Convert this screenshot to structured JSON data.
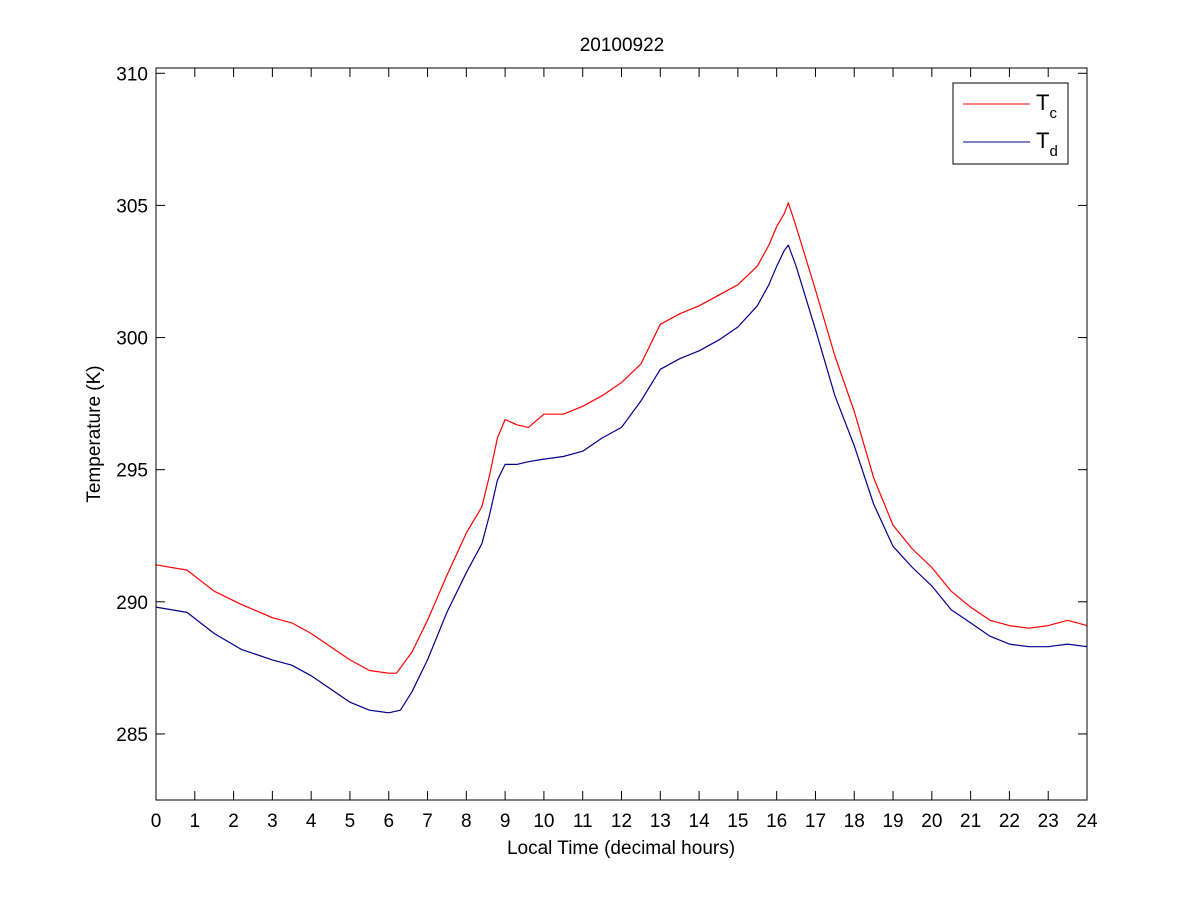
{
  "chart_data": {
    "type": "line",
    "title": "20100922",
    "xlabel": "Local Time (decimal hours)",
    "ylabel": "Temperature (K)",
    "xlim": [
      0,
      24
    ],
    "ylim": [
      282.5,
      310.2
    ],
    "xticks": [
      0,
      1,
      2,
      3,
      4,
      5,
      6,
      7,
      8,
      9,
      10,
      11,
      12,
      13,
      14,
      15,
      16,
      17,
      18,
      19,
      20,
      21,
      22,
      23,
      24
    ],
    "yticks": [
      285,
      290,
      295,
      300,
      305,
      310
    ],
    "grid": false,
    "legend_position": "top-right",
    "series": [
      {
        "name": "T",
        "name_subscript": "c",
        "color": "#ff0000",
        "x": [
          0,
          0.8,
          1.5,
          2.2,
          3,
          3.5,
          4,
          4.5,
          5,
          5.5,
          6,
          6.2,
          6.6,
          7,
          7.5,
          8,
          8.4,
          8.6,
          8.8,
          9,
          9.3,
          9.6,
          10,
          10.5,
          11,
          11.5,
          12,
          12.5,
          13,
          13.5,
          14,
          14.5,
          15,
          15.5,
          15.8,
          16,
          16.2,
          16.3,
          16.5,
          17,
          17.5,
          18,
          18.5,
          19,
          19.5,
          20,
          20.5,
          21,
          21.5,
          22,
          22.5,
          23,
          23.5,
          24
        ],
        "values": [
          291.4,
          291.2,
          290.4,
          289.9,
          289.4,
          289.2,
          288.8,
          288.3,
          287.8,
          287.4,
          287.3,
          287.3,
          288.1,
          289.3,
          291.0,
          292.6,
          293.6,
          294.8,
          296.2,
          296.9,
          296.7,
          296.6,
          297.1,
          297.1,
          297.4,
          297.8,
          298.3,
          299.0,
          300.5,
          300.9,
          301.2,
          301.6,
          302.0,
          302.7,
          303.5,
          304.2,
          304.7,
          305.1,
          304.2,
          301.8,
          299.3,
          297.2,
          294.7,
          292.9,
          292.0,
          291.3,
          290.4,
          289.8,
          289.3,
          289.1,
          289.0,
          289.1,
          289.3,
          289.1
        ]
      },
      {
        "name": "T",
        "name_subscript": "d",
        "color": "#00008b",
        "x": [
          0,
          0.8,
          1.5,
          2.2,
          3,
          3.5,
          4,
          4.5,
          5,
          5.5,
          6,
          6.3,
          6.6,
          7,
          7.5,
          8,
          8.4,
          8.6,
          8.8,
          9,
          9.3,
          9.6,
          10,
          10.5,
          11,
          11.5,
          12,
          12.5,
          13,
          13.5,
          14,
          14.5,
          15,
          15.5,
          15.8,
          16,
          16.2,
          16.3,
          16.5,
          17,
          17.5,
          18,
          18.5,
          19,
          19.5,
          20,
          20.5,
          21,
          21.5,
          22,
          22.5,
          23,
          23.5,
          24
        ],
        "values": [
          289.8,
          289.6,
          288.8,
          288.2,
          287.8,
          287.6,
          287.2,
          286.7,
          286.2,
          285.9,
          285.8,
          285.9,
          286.6,
          287.8,
          289.6,
          291.1,
          292.2,
          293.3,
          294.6,
          295.2,
          295.2,
          295.3,
          295.4,
          295.5,
          295.7,
          296.2,
          296.6,
          297.6,
          298.8,
          299.2,
          299.5,
          299.9,
          300.4,
          301.2,
          302.0,
          302.7,
          303.3,
          303.5,
          302.7,
          300.3,
          297.8,
          295.9,
          293.7,
          292.1,
          291.3,
          290.6,
          289.7,
          289.2,
          288.7,
          288.4,
          288.3,
          288.3,
          288.4,
          288.3
        ]
      }
    ]
  }
}
